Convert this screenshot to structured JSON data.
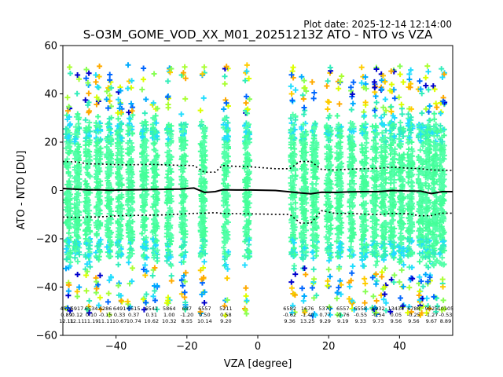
{
  "chart_data": {
    "type": "scatter",
    "plot_date": "Plot date: 2025-12-14 12:14:00",
    "title": "S-O3M_GOME_VOD_XX_M01_20251213Z ATO - NTO vs VZA",
    "xlabel": "VZA [degree]",
    "ylabel": "ATO - NTO [DU]",
    "xlim": [
      -55,
      55
    ],
    "ylim": [
      -60,
      60
    ],
    "xticks": [
      -40,
      -20,
      0,
      20,
      40
    ],
    "xtick_labels": [
      "−40",
      "−20",
      "0",
      "20",
      "40"
    ],
    "yticks": [
      -60,
      -40,
      -20,
      0,
      20,
      40,
      60
    ],
    "ytick_labels": [
      "−60",
      "−40",
      "−20",
      "0",
      "20",
      "40",
      "60"
    ],
    "grid": false,
    "columns_x": [
      -53.5,
      -51,
      -48,
      -45,
      -42,
      -39,
      -36,
      -32,
      -29,
      -25,
      -21,
      -15.5,
      -9,
      -3,
      10,
      13,
      16,
      20,
      23,
      26.5,
      30,
      33,
      35.5,
      38,
      40.5,
      43,
      46,
      48,
      50,
      52
    ],
    "bins": [
      {
        "x": -54,
        "n": "4522",
        "mean": "0.89",
        "std": "12.11"
      },
      {
        "x": -51,
        "n": "5917",
        "mean": "0.12",
        "std": "12.11"
      },
      {
        "x": -47,
        "n": "6534",
        "mean": "0.10",
        "std": "11.19"
      },
      {
        "x": -43,
        "n": "6286",
        "mean": "-0.15",
        "std": "11.11"
      },
      {
        "x": -39,
        "n": "6491",
        "mean": "0.33",
        "std": "10.67"
      },
      {
        "x": -35,
        "n": "6515",
        "mean": "0.37",
        "std": "10.74"
      },
      {
        "x": -30,
        "n": "6541",
        "mean": "0.31",
        "std": "10.62"
      },
      {
        "x": -25,
        "n": "5864",
        "mean": "1.00",
        "std": "10.32"
      },
      {
        "x": -20,
        "n": "687",
        "mean": "-1.20",
        "std": "8.55"
      },
      {
        "x": -15,
        "n": "6557",
        "mean": "0.50",
        "std": "10.14"
      },
      {
        "x": -9,
        "n": "5211",
        "mean": "0.58",
        "std": "9.20"
      },
      {
        "x": 9,
        "n": "6582",
        "mean": "-0.62",
        "std": "9.36"
      },
      {
        "x": 14,
        "n": "1676",
        "mean": "-1.40",
        "std": "13.25"
      },
      {
        "x": 19,
        "n": "5370",
        "mean": "0.77",
        "std": "9.29"
      },
      {
        "x": 24,
        "n": "6557",
        "mean": "-0.76",
        "std": "9.19"
      },
      {
        "x": 29,
        "n": "6558",
        "mean": "-0.55",
        "std": "9.33"
      },
      {
        "x": 34,
        "n": "6932",
        "mean": "-0.54",
        "std": "9.73"
      },
      {
        "x": 39,
        "n": "13434",
        "mean": "0.05",
        "std": "9.56"
      },
      {
        "x": 44,
        "n": "6788",
        "mean": "-0.25",
        "std": "9.56"
      },
      {
        "x": 49,
        "n": "9825",
        "mean": "-1.27",
        "std": "9.67"
      },
      {
        "x": 53,
        "n": "10105",
        "mean": "-0.53",
        "std": "8.89"
      }
    ],
    "mean_line": [
      [
        -55,
        0.8
      ],
      [
        -51,
        0.5
      ],
      [
        -48,
        0.2
      ],
      [
        -45,
        0.3
      ],
      [
        -42,
        0.1
      ],
      [
        -38,
        0.2
      ],
      [
        -34,
        0.3
      ],
      [
        -30,
        0.4
      ],
      [
        -26,
        0.5
      ],
      [
        -22,
        0.6
      ],
      [
        -18,
        1.0
      ],
      [
        -15,
        -0.8
      ],
      [
        -12,
        -0.5
      ],
      [
        -10,
        0.3
      ],
      [
        -6,
        0.2
      ],
      [
        -2,
        0.2
      ],
      [
        5,
        0.0
      ],
      [
        9,
        -0.6
      ],
      [
        12,
        -1.0
      ],
      [
        15,
        -1.4
      ],
      [
        18,
        -0.7
      ],
      [
        22,
        -0.8
      ],
      [
        26,
        -0.6
      ],
      [
        30,
        -0.5
      ],
      [
        34,
        -0.5
      ],
      [
        38,
        0.0
      ],
      [
        42,
        -0.2
      ],
      [
        46,
        -0.3
      ],
      [
        49,
        -1.3
      ],
      [
        52,
        -0.5
      ],
      [
        55,
        -0.5
      ]
    ],
    "upper_std_line": [
      [
        -55,
        12.0
      ],
      [
        -51,
        11.8
      ],
      [
        -48,
        11.0
      ],
      [
        -45,
        11.0
      ],
      [
        -42,
        10.8
      ],
      [
        -38,
        10.6
      ],
      [
        -34,
        10.7
      ],
      [
        -30,
        10.8
      ],
      [
        -26,
        10.6
      ],
      [
        -22,
        10.4
      ],
      [
        -18,
        10.3
      ],
      [
        -15,
        7.5
      ],
      [
        -12,
        7.6
      ],
      [
        -10,
        10.3
      ],
      [
        -6,
        10.0
      ],
      [
        -2,
        9.8
      ],
      [
        5,
        9.0
      ],
      [
        9,
        9.0
      ],
      [
        12,
        12.0
      ],
      [
        15,
        12.0
      ],
      [
        18,
        8.7
      ],
      [
        22,
        8.5
      ],
      [
        26,
        8.8
      ],
      [
        30,
        9.0
      ],
      [
        34,
        9.2
      ],
      [
        38,
        9.6
      ],
      [
        42,
        9.3
      ],
      [
        46,
        9.0
      ],
      [
        49,
        8.5
      ],
      [
        52,
        8.4
      ],
      [
        55,
        8.3
      ]
    ],
    "lower_std_line": [
      [
        -55,
        -11.0
      ],
      [
        -51,
        -11.2
      ],
      [
        -48,
        -11.0
      ],
      [
        -45,
        -11.0
      ],
      [
        -42,
        -10.7
      ],
      [
        -38,
        -10.4
      ],
      [
        -34,
        -10.3
      ],
      [
        -30,
        -10.2
      ],
      [
        -26,
        -10.1
      ],
      [
        -22,
        -9.8
      ],
      [
        -18,
        -9.5
      ],
      [
        -15,
        -9.4
      ],
      [
        -12,
        -9.2
      ],
      [
        -10,
        -9.5
      ],
      [
        -6,
        -9.6
      ],
      [
        -2,
        -9.7
      ],
      [
        5,
        -9.9
      ],
      [
        9,
        -9.9
      ],
      [
        12,
        -13.5
      ],
      [
        15,
        -13.5
      ],
      [
        18,
        -8.4
      ],
      [
        22,
        -9.5
      ],
      [
        26,
        -9.5
      ],
      [
        30,
        -9.8
      ],
      [
        34,
        -10.0
      ],
      [
        38,
        -9.5
      ],
      [
        42,
        -9.6
      ],
      [
        46,
        -10.5
      ],
      [
        49,
        -10.4
      ],
      [
        52,
        -9.4
      ],
      [
        55,
        -9.4
      ]
    ],
    "marker_colors": [
      "#44ff99",
      "#55ffaa",
      "#33eebb",
      "#22ddff",
      "#00aaff",
      "#0066ff",
      "#aaff33",
      "#ddff00",
      "#ffcc00",
      "#ffaa00",
      "#88ff55",
      "#0000cc"
    ]
  }
}
